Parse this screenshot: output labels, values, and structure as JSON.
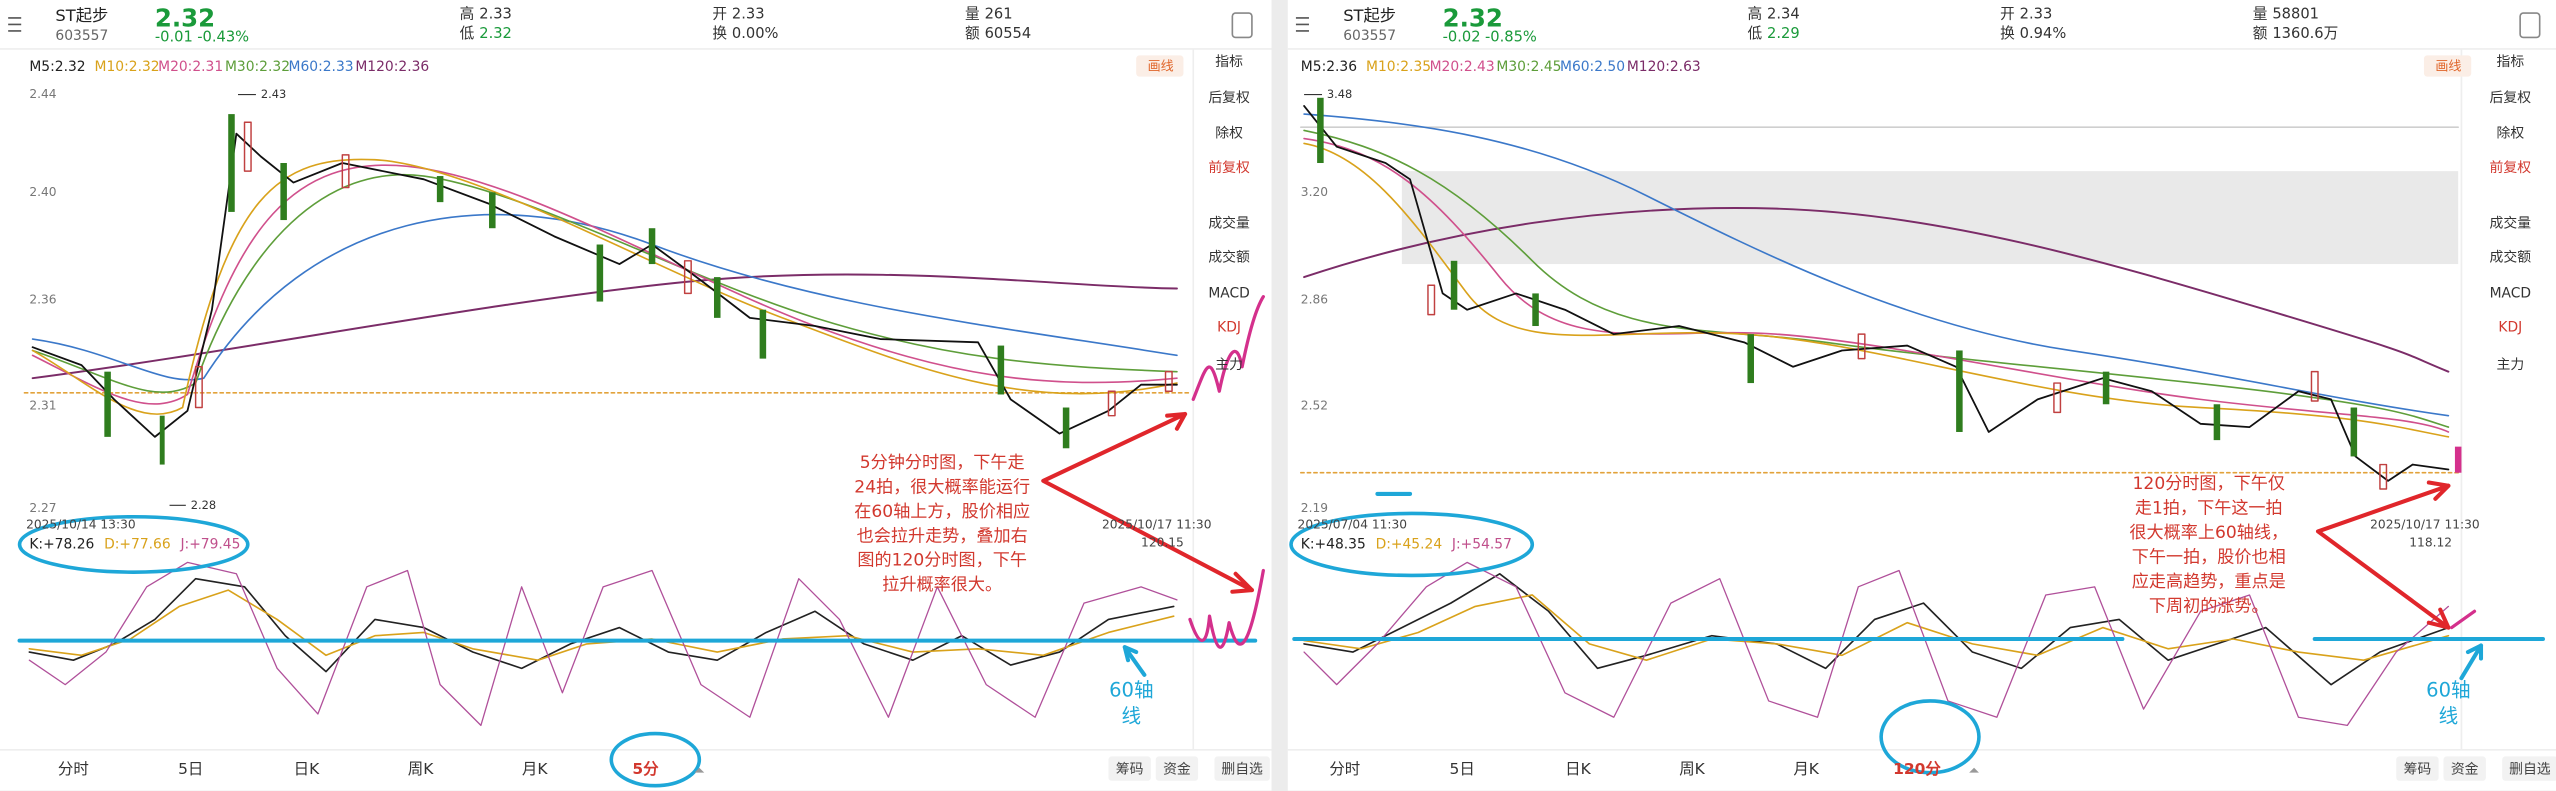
{
  "panes": [
    {
      "header": {
        "name": "ST起步",
        "code": "603557",
        "price": "2.32",
        "change": "-0.01",
        "change_pct": "-0.43%",
        "high_label": "高",
        "high": "2.33",
        "low_label": "低",
        "low": "2.32",
        "open_label": "开",
        "open": "2.33",
        "turnover_label": "换",
        "turnover": "0.00%",
        "volume_label": "量",
        "volume": "261",
        "amount_label": "额",
        "amount": "60554"
      },
      "ma": [
        {
          "label": "M5:2.32",
          "color": "#222222"
        },
        {
          "label": "M10:2.32",
          "color": "#d9a21b"
        },
        {
          "label": "M20:2.31",
          "color": "#d0508c"
        },
        {
          "label": "M30:2.32",
          "color": "#5e9e3a"
        },
        {
          "label": "M60:2.33",
          "color": "#3b78c9"
        },
        {
          "label": "M120:2.36",
          "color": "#7b2c68"
        }
      ],
      "draw_button": "画线",
      "sidebar": [
        "指标",
        "后复权",
        "除权",
        "前复权",
        "成交量",
        "成交额",
        "MACD",
        "KDJ",
        "主力"
      ],
      "sidebar_highlight": [
        3,
        7
      ],
      "yticks": [
        "2.44",
        "2.40",
        "2.36",
        "2.31",
        "2.27"
      ],
      "high_marker": "2.43",
      "low_marker": "2.28",
      "start_date": "2025/10/14 13:30",
      "end_date": "2025/10/17 11:30",
      "side_value": "120.15",
      "kdj": [
        {
          "label": "K:+78.26",
          "color": "#222222"
        },
        {
          "label": "D:+77.66",
          "color": "#d9a21b"
        },
        {
          "label": "J:+79.45",
          "color": "#c0508c"
        }
      ],
      "annotation": [
        "5分钟分时图，下午走",
        "24拍，很大概率能运行",
        "在60轴上方，股价相应",
        "也会拉升走势，叠加右",
        "图的120分时图，下午",
        "拉升概率很大。"
      ],
      "axis_note": [
        "60轴",
        "线"
      ],
      "tabs": [
        "分时",
        "5日",
        "日K",
        "周K",
        "月K",
        "5分"
      ],
      "active_tab": 5,
      "buttons": [
        "筹码",
        "资金",
        "删自选"
      ]
    },
    {
      "header": {
        "name": "ST起步",
        "code": "603557",
        "price": "2.32",
        "change": "-0.02",
        "change_pct": "-0.85%",
        "high_label": "高",
        "high": "2.34",
        "low_label": "低",
        "low": "2.29",
        "open_label": "开",
        "open": "2.33",
        "turnover_label": "换",
        "turnover": "0.94%",
        "volume_label": "量",
        "volume": "58801",
        "amount_label": "额",
        "amount": "1360.6万"
      },
      "ma": [
        {
          "label": "M5:2.36",
          "color": "#222222"
        },
        {
          "label": "M10:2.35",
          "color": "#d9a21b"
        },
        {
          "label": "M20:2.43",
          "color": "#d0508c"
        },
        {
          "label": "M30:2.45",
          "color": "#5e9e3a"
        },
        {
          "label": "M60:2.50",
          "color": "#3b78c9"
        },
        {
          "label": "M120:2.63",
          "color": "#7b2c68"
        }
      ],
      "draw_button": "画线",
      "sidebar": [
        "指标",
        "后复权",
        "除权",
        "前复权",
        "成交量",
        "成交额",
        "MACD",
        "KDJ",
        "主力"
      ],
      "sidebar_highlight": [
        3,
        7
      ],
      "yticks": [
        "3.20",
        "2.86",
        "2.52",
        "2.19"
      ],
      "high_marker": "3.48",
      "start_date": "2025/07/04 11:30",
      "end_date": "2025/10/17 11:30",
      "side_value": "118.12",
      "kdj": [
        {
          "label": "K:+48.35",
          "color": "#222222"
        },
        {
          "label": "D:+45.24",
          "color": "#d9a21b"
        },
        {
          "label": "J:+54.57",
          "color": "#c0508c"
        }
      ],
      "annotation": [
        "120分时图，下午仅",
        "走1拍，下午这一拍",
        "很大概率上60轴线，",
        "下午一拍，股价也相",
        "应走高趋势，重点是",
        "下周初的涨势。"
      ],
      "axis_note": [
        "60轴",
        "线"
      ],
      "tabs": [
        "分时",
        "5日",
        "日K",
        "周K",
        "月K",
        "120分"
      ],
      "active_tab": 5,
      "buttons": [
        "筹码",
        "资金",
        "删自选"
      ]
    }
  ]
}
